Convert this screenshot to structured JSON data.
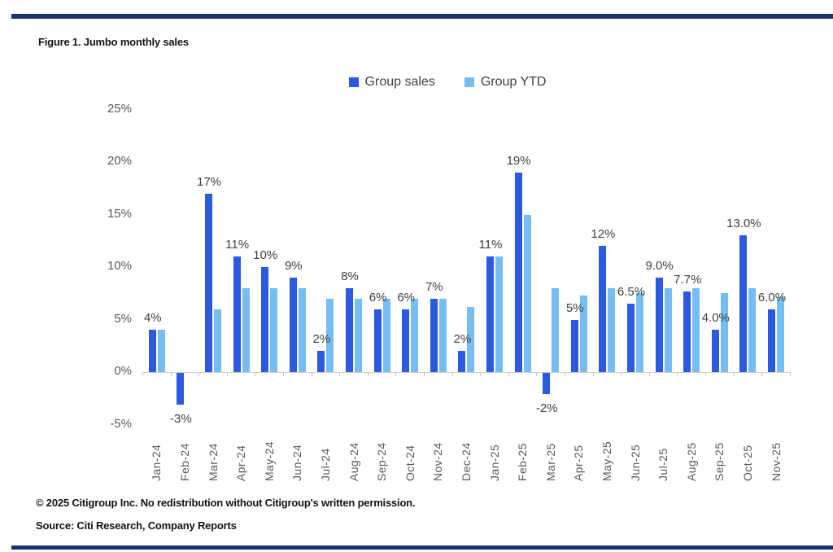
{
  "figure": {
    "title": "Figure 1. Jumbo monthly sales"
  },
  "footer": {
    "copyright": "© 2025 Citigroup Inc. No redistribution without Citigroup's written permission.",
    "source": "Source: Citi Research, Company Reports"
  },
  "colors": {
    "group_sales": "#2b5ae0",
    "group_ytd": "#76bdf3",
    "rule_navy": "#17336e",
    "axis_text": "#595959",
    "data_label_text": "#404040"
  },
  "chart_data": {
    "type": "bar",
    "title": "Figure 1. Jumbo monthly sales",
    "categories": [
      "Jan-24",
      "Feb-24",
      "Mar-24",
      "Apr-24",
      "May-24",
      "Jun-24",
      "Jul-24",
      "Aug-24",
      "Sep-24",
      "Oct-24",
      "Nov-24",
      "Dec-24",
      "Jan-25",
      "Feb-25",
      "Mar-25",
      "Apr-25",
      "May-25",
      "Jun-25",
      "Jul-25",
      "Aug-25",
      "Sep-25",
      "Oct-25",
      "Nov-25"
    ],
    "series": [
      {
        "name": "Group sales",
        "color": "#2b5ae0",
        "values": [
          4,
          -3,
          17,
          11,
          10,
          9,
          2,
          8,
          6,
          6,
          7,
          2,
          11,
          19,
          -2,
          5,
          12,
          6.5,
          9,
          7.7,
          4,
          13,
          6
        ]
      },
      {
        "name": "Group YTD",
        "color": "#76bdf3",
        "values": [
          4,
          0,
          6,
          8,
          8,
          8,
          7,
          7,
          7,
          7,
          7,
          6.2,
          11,
          15,
          8,
          7.3,
          8,
          7.5,
          8,
          8,
          7.5,
          8,
          7.1
        ]
      }
    ],
    "data_labels": [
      "4%",
      "-3%",
      "17%",
      "11%",
      "10%",
      "9%",
      "2%",
      "8%",
      "6%",
      "6%",
      "7%",
      "2%",
      "11%",
      "19%",
      "-2%",
      "5%",
      "12%",
      "6.5%",
      "9.0%",
      "7.7%",
      "4.0%",
      "13.0%",
      "6.0%"
    ],
    "y_axis": {
      "ticks": [
        25,
        20,
        15,
        10,
        5,
        0,
        -5
      ],
      "tick_labels": [
        "25%",
        "20%",
        "15%",
        "10%",
        "5%",
        "0%",
        "-5%"
      ],
      "ylim": [
        -5,
        25
      ]
    },
    "xlabel": "",
    "ylabel": "",
    "legend_position": "top",
    "grid": false
  }
}
